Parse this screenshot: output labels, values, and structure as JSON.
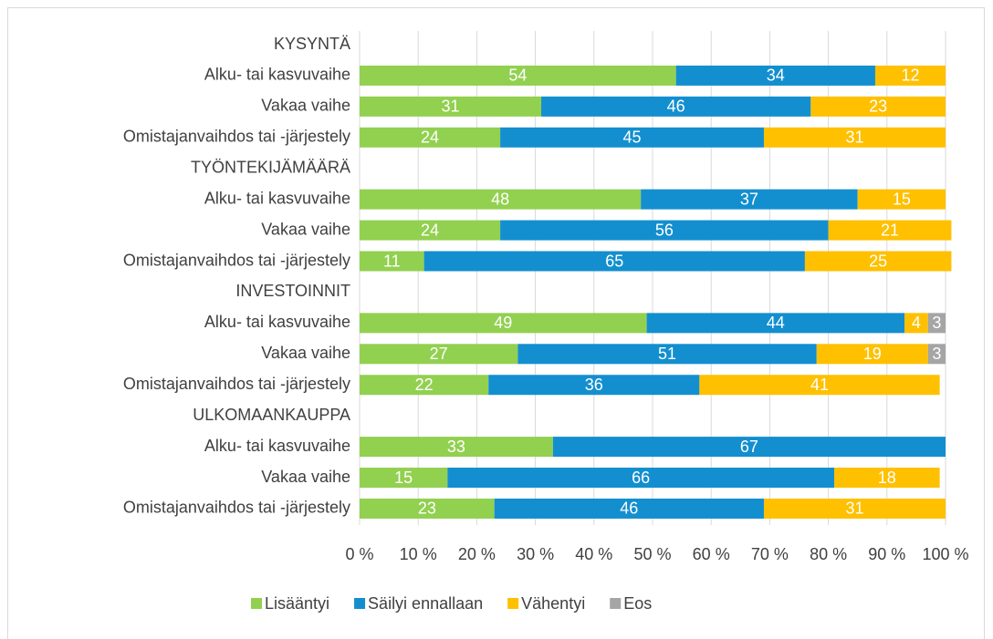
{
  "chart_data": {
    "type": "bar",
    "orientation": "horizontal",
    "stacked": true,
    "categories": [
      "KYSYNTÄ",
      "Alku- tai kasvuvaihe",
      "Vakaa vaihe",
      "Omistajanvaihdos tai -järjestely",
      "TYÖNTEKIJÄMÄÄRÄ",
      "Alku- tai kasvuvaihe",
      "Vakaa vaihe",
      "Omistajanvaihdos tai -järjestely",
      "INVESTOINNIT",
      "Alku- tai kasvuvaihe",
      "Vakaa vaihe",
      "Omistajanvaihdos tai -järjestely",
      "ULKOMAANKAUPPA",
      "Alku- tai kasvuvaihe",
      "Vakaa vaihe",
      "Omistajanvaihdos tai -järjestely"
    ],
    "series": [
      {
        "name": "Lisääntyi",
        "color": "#92d050",
        "values": [
          null,
          54,
          31,
          24,
          null,
          48,
          24,
          11,
          null,
          49,
          27,
          22,
          null,
          33,
          15,
          23
        ]
      },
      {
        "name": "Säilyi ennallaan",
        "color": "#138fcf",
        "values": [
          null,
          34,
          46,
          45,
          null,
          37,
          56,
          65,
          null,
          44,
          51,
          36,
          null,
          67,
          66,
          46
        ]
      },
      {
        "name": "Vähentyi",
        "color": "#ffc000",
        "values": [
          null,
          12,
          23,
          31,
          null,
          15,
          21,
          25,
          null,
          4,
          19,
          41,
          null,
          null,
          18,
          31
        ]
      },
      {
        "name": "Eos",
        "color": "#a5a5a5",
        "values": [
          null,
          null,
          null,
          null,
          null,
          null,
          null,
          null,
          null,
          3,
          3,
          null,
          null,
          null,
          null,
          null
        ]
      }
    ],
    "xlim": [
      0,
      100
    ],
    "xticks": [
      {
        "value": 0,
        "label": "0 %"
      },
      {
        "value": 10,
        "label": "10 %"
      },
      {
        "value": 20,
        "label": "20 %"
      },
      {
        "value": 30,
        "label": "30 %"
      },
      {
        "value": 40,
        "label": "40 %"
      },
      {
        "value": 50,
        "label": "50 %"
      },
      {
        "value": 60,
        "label": "60 %"
      },
      {
        "value": 70,
        "label": "70 %"
      },
      {
        "value": 80,
        "label": "80 %"
      },
      {
        "value": 90,
        "label": "90 %"
      },
      {
        "value": 100,
        "label": "100 %"
      }
    ],
    "grid": true,
    "legend": "bottom"
  }
}
